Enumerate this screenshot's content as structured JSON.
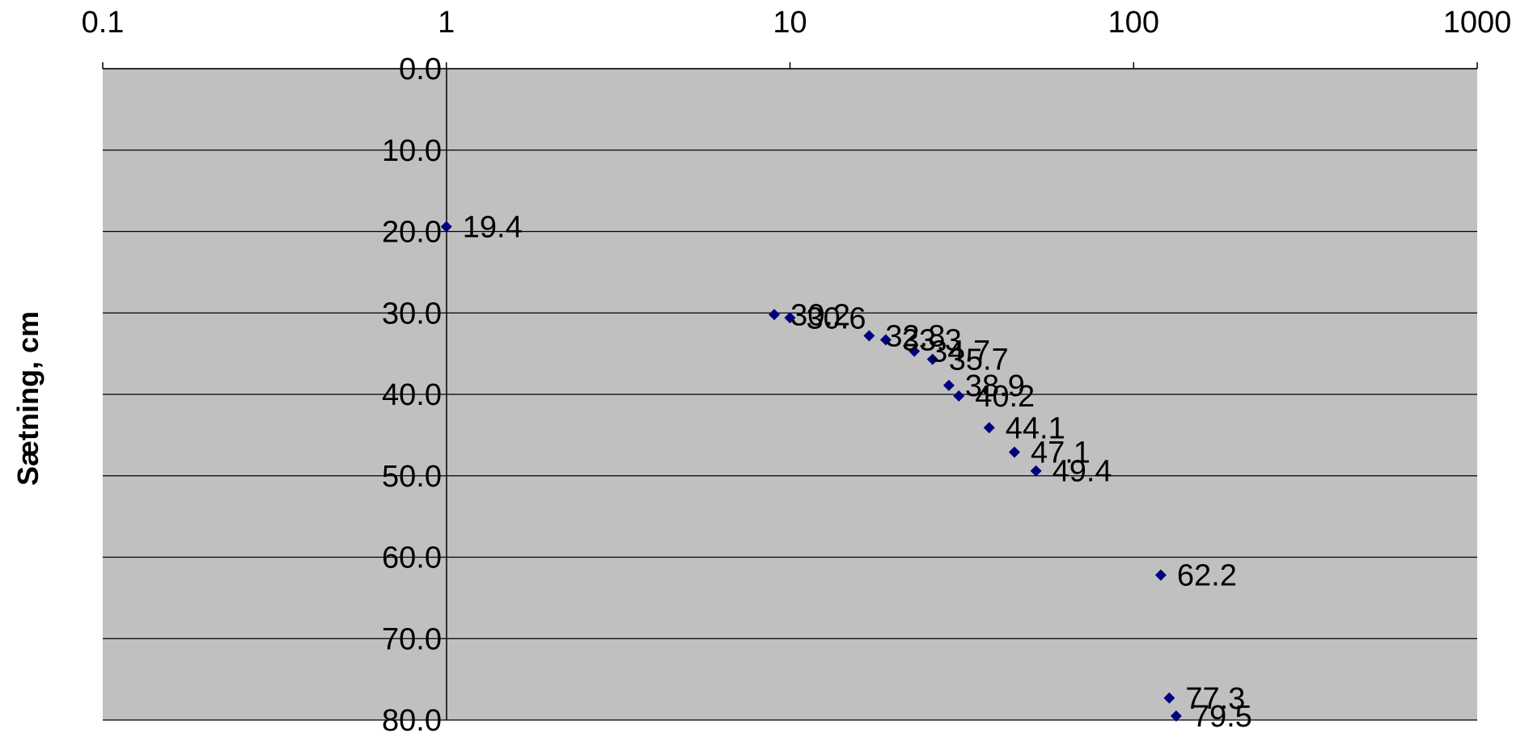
{
  "chart_data": {
    "type": "scatter",
    "title": "",
    "xlabel": "",
    "ylabel": "Sætning, cm",
    "x_scale": "log",
    "xlim": [
      0.1,
      1000
    ],
    "ylim": [
      0,
      80
    ],
    "y_inverted": true,
    "x_ticks": [
      "0.1",
      "1",
      "10",
      "100",
      "1000"
    ],
    "y_ticks": [
      "0.0",
      "10.0",
      "20.0",
      "30.0",
      "40.0",
      "50.0",
      "60.0",
      "70.0",
      "80.0"
    ],
    "plot_background": "#c0c0c0",
    "marker_color": "#000080",
    "grid": "horizontal",
    "points": [
      {
        "x": 1.0,
        "y": 19.4,
        "label": "19.4"
      },
      {
        "x": 9.0,
        "y": 30.2,
        "label": "30.2"
      },
      {
        "x": 10.0,
        "y": 30.6,
        "label": "30.6"
      },
      {
        "x": 17.0,
        "y": 32.8,
        "label": "32.8"
      },
      {
        "x": 19.0,
        "y": 33.3,
        "label": "33.3"
      },
      {
        "x": 23.0,
        "y": 34.7,
        "label": "34.7"
      },
      {
        "x": 26.0,
        "y": 35.7,
        "label": "35.7"
      },
      {
        "x": 29.0,
        "y": 38.9,
        "label": "38.9"
      },
      {
        "x": 31.0,
        "y": 40.2,
        "label": "40.2"
      },
      {
        "x": 38.0,
        "y": 44.1,
        "label": "44.1"
      },
      {
        "x": 45.0,
        "y": 47.1,
        "label": "47.1"
      },
      {
        "x": 52.0,
        "y": 49.4,
        "label": "49.4"
      },
      {
        "x": 120.0,
        "y": 62.2,
        "label": "62.2"
      },
      {
        "x": 127.0,
        "y": 77.3,
        "label": "77.3"
      },
      {
        "x": 133.0,
        "y": 79.5,
        "label": "79.5"
      }
    ]
  }
}
